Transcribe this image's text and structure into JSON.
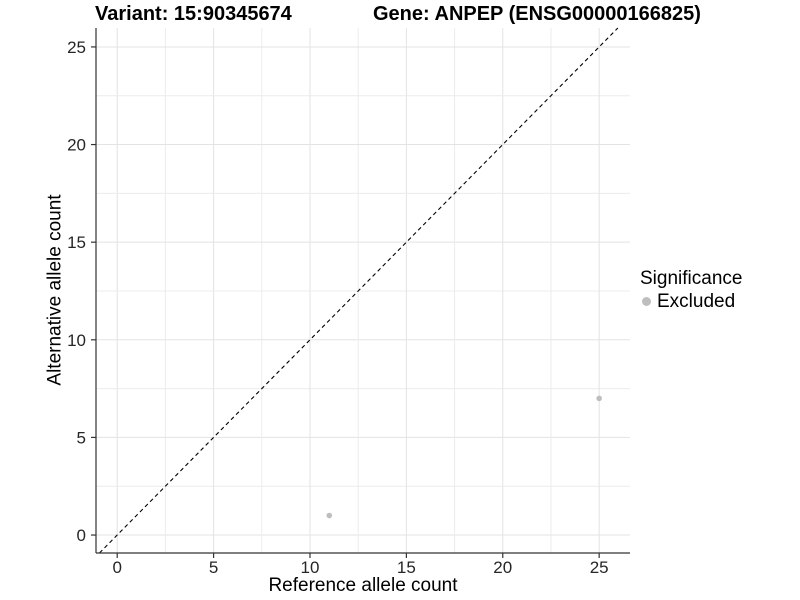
{
  "titles": {
    "variant": "Variant: 15:90345674",
    "gene": "Gene: ANPEP (ENSG00000166825)"
  },
  "legend": {
    "title": "Significance",
    "items": [
      {
        "label": "Excluded",
        "color": "#bebebe"
      }
    ]
  },
  "chart_data": {
    "type": "scatter",
    "title": "Variant: 15:90345674 — Gene: ANPEP (ENSG00000166825)",
    "xlabel": "Reference allele count",
    "ylabel": "Alternative allele count",
    "xlim": [
      -1.1,
      26.6
    ],
    "ylim": [
      -0.92,
      25.97
    ],
    "x_ticks": [
      0,
      5,
      10,
      15,
      20,
      25
    ],
    "y_ticks": [
      0,
      5,
      10,
      15,
      20,
      25
    ],
    "minor_grid_step": 2.5,
    "grid": true,
    "legend_position": "right",
    "series": [
      {
        "name": "Excluded",
        "color": "#bebebe",
        "points": [
          {
            "x": 11,
            "y": 1
          },
          {
            "x": 25,
            "y": 7
          }
        ]
      }
    ],
    "reference_line": {
      "type": "identity",
      "equation": "y = x",
      "style": "dashed",
      "color": "#000000"
    }
  },
  "colors": {
    "background": "#ffffff",
    "grid_major": "#e3e3e3",
    "grid_minor": "#ececec",
    "axis_line": "#333333",
    "tick_text": "#262626",
    "point": "#bebebe",
    "identity_line": "#000000"
  }
}
